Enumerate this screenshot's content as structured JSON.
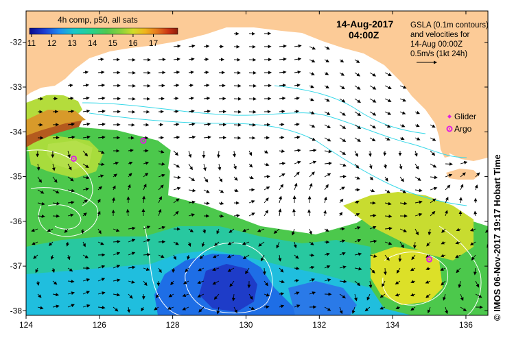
{
  "colorbar": {
    "title": "4h comp, p50, all sats",
    "ticks": [
      "11",
      "12",
      "13",
      "14",
      "15",
      "16",
      "17"
    ],
    "tick_values": [
      11,
      12,
      13,
      14,
      15,
      16,
      17
    ],
    "range": [
      10.9,
      18.2
    ],
    "colors": [
      "#0a0a8c",
      "#1e3cd2",
      "#1e8cf0",
      "#19c8c8",
      "#28d28c",
      "#50c850",
      "#8cd23c",
      "#d2dc28",
      "#f0b41e",
      "#e6781e",
      "#c83214",
      "#8c1e0a"
    ]
  },
  "header": {
    "date": "14-Aug-2017",
    "time": "04:00Z"
  },
  "legend": {
    "line1": "GSLA (0.1m contours)",
    "line2": "and velocities for",
    "line3": "14-Aug 00:00Z",
    "line4": "0.5m/s (1kt 24h)",
    "glider": "Glider",
    "argo": "Argo"
  },
  "axes": {
    "x_ticks": [
      "124",
      "126",
      "128",
      "130",
      "132",
      "134",
      "136"
    ],
    "x_values": [
      124,
      126,
      128,
      130,
      132,
      134,
      136
    ],
    "y_ticks": [
      "-32",
      "-33",
      "-34",
      "-35",
      "-36",
      "-37",
      "-38"
    ],
    "y_values": [
      -32,
      -33,
      -34,
      -35,
      -36,
      -37,
      -38
    ],
    "lon_range": [
      124,
      136.6
    ],
    "lat_range": [
      -38.1,
      -31.3
    ]
  },
  "markers": {
    "argo_floats": [
      {
        "lon": 125.3,
        "lat": -34.6
      },
      {
        "lon": 127.2,
        "lat": -34.2
      },
      {
        "lon": 135.0,
        "lat": -36.85
      }
    ]
  },
  "credit": "© IMOS 06-Nov-2017 19:17 Hobart Time",
  "colors": {
    "land": "#fccb97",
    "contour_cyan": "#38d8e8",
    "contour_white": "#ffffff",
    "argo": "#e020e0"
  }
}
